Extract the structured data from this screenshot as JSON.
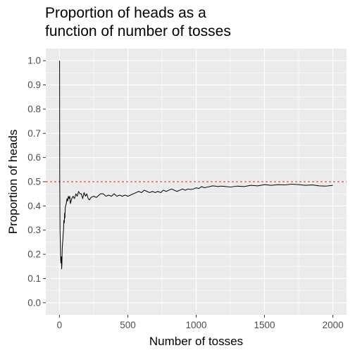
{
  "chart_data": {
    "type": "line",
    "title": "Proportion of heads as a\nfunction of number of tosses",
    "xlabel": "Number of tosses",
    "ylabel": "Proportion of heads",
    "xlim": [
      -100,
      2100
    ],
    "ylim": [
      -0.05,
      1.05
    ],
    "x_ticks": [
      0,
      500,
      1000,
      1500,
      2000
    ],
    "y_ticks": [
      0.0,
      0.1,
      0.2,
      0.3,
      0.4,
      0.5,
      0.6,
      0.7,
      0.8,
      0.9,
      1.0
    ],
    "x_tick_labels": [
      "0",
      "500",
      "1000",
      "1500",
      "2000"
    ],
    "y_tick_labels": [
      "0.0",
      "0.1",
      "0.2",
      "0.3",
      "0.4",
      "0.5",
      "0.6",
      "0.7",
      "0.8",
      "0.9",
      "1.0"
    ],
    "grid": true,
    "reference_line": {
      "y": 0.5,
      "color": "#e31a1c",
      "style": "dashed"
    },
    "series": [
      {
        "color": "#000000",
        "x": [
          1,
          2,
          4,
          6,
          8,
          10,
          12,
          14,
          16,
          18,
          20,
          22,
          25,
          28,
          30,
          32,
          35,
          38,
          40,
          42,
          45,
          50,
          55,
          60,
          65,
          70,
          75,
          80,
          90,
          100,
          110,
          120,
          130,
          140,
          150,
          160,
          170,
          180,
          190,
          200,
          210,
          220,
          230,
          250,
          270,
          290,
          300,
          320,
          340,
          360,
          380,
          400,
          420,
          440,
          460,
          480,
          500,
          520,
          540,
          560,
          580,
          600,
          620,
          640,
          660,
          680,
          700,
          720,
          740,
          760,
          780,
          800,
          820,
          840,
          860,
          880,
          900,
          920,
          940,
          960,
          980,
          1000,
          1020,
          1040,
          1060,
          1080,
          1100,
          1120,
          1140,
          1160,
          1180,
          1200,
          1250,
          1300,
          1350,
          1400,
          1450,
          1500,
          1550,
          1600,
          1650,
          1700,
          1750,
          1800,
          1850,
          1900,
          1950,
          2000
        ],
        "y": [
          1.0,
          0.5,
          0.3,
          0.25,
          0.19,
          0.165,
          0.17,
          0.19,
          0.14,
          0.16,
          0.22,
          0.24,
          0.26,
          0.29,
          0.3,
          0.34,
          0.33,
          0.37,
          0.35,
          0.39,
          0.4,
          0.41,
          0.43,
          0.42,
          0.44,
          0.43,
          0.44,
          0.41,
          0.43,
          0.44,
          0.43,
          0.45,
          0.44,
          0.46,
          0.45,
          0.45,
          0.43,
          0.455,
          0.44,
          0.45,
          0.43,
          0.425,
          0.435,
          0.44,
          0.435,
          0.445,
          0.45,
          0.45,
          0.44,
          0.445,
          0.44,
          0.45,
          0.44,
          0.445,
          0.44,
          0.445,
          0.44,
          0.445,
          0.45,
          0.455,
          0.46,
          0.455,
          0.465,
          0.46,
          0.455,
          0.46,
          0.455,
          0.46,
          0.455,
          0.465,
          0.46,
          0.465,
          0.47,
          0.465,
          0.46,
          0.465,
          0.47,
          0.465,
          0.47,
          0.468,
          0.47,
          0.475,
          0.472,
          0.48,
          0.475,
          0.478,
          0.48,
          0.483,
          0.482,
          0.48,
          0.482,
          0.481,
          0.478,
          0.482,
          0.48,
          0.485,
          0.483,
          0.488,
          0.485,
          0.488,
          0.487,
          0.49,
          0.488,
          0.485,
          0.487,
          0.483,
          0.482,
          0.485
        ]
      }
    ]
  }
}
